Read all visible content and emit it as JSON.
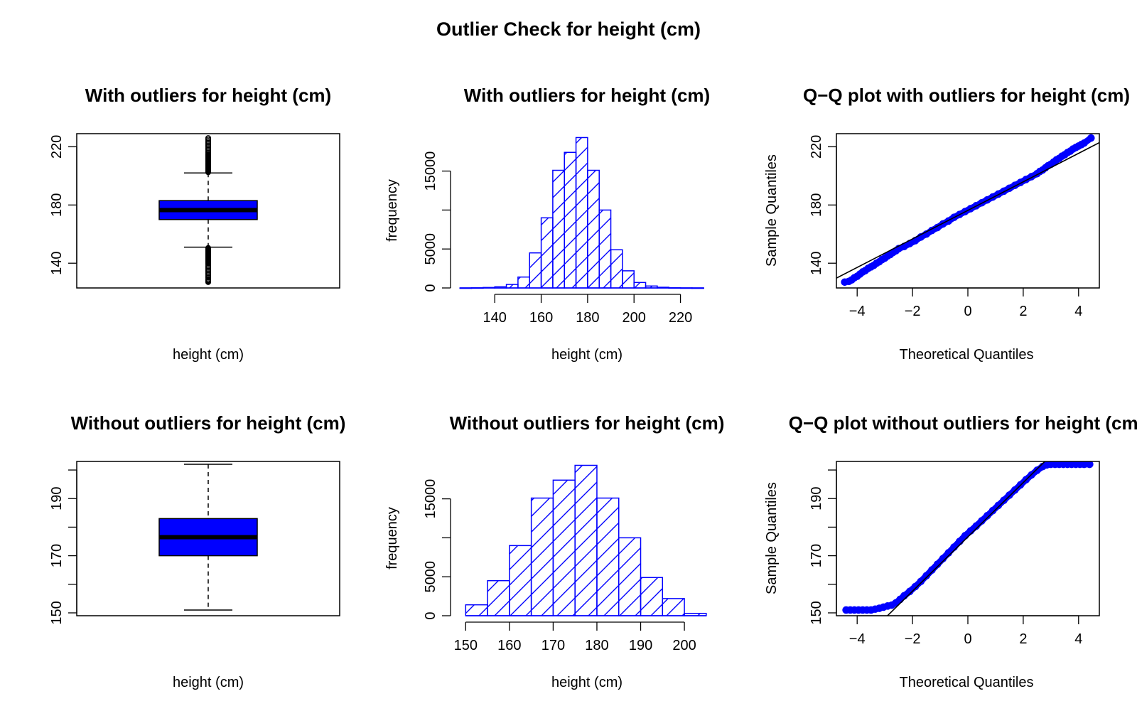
{
  "figure_title": "Outlier Check for  height (cm)",
  "colors": {
    "fill": "#0000ff",
    "line": "#000000",
    "hatch": "#0000ff"
  },
  "chart_data": [
    {
      "type": "boxplot",
      "title": "With outliers for height (cm)",
      "xlabel": "height (cm)",
      "ylabel": "",
      "ylim": [
        123,
        229
      ],
      "yticks": [
        140,
        180,
        220
      ],
      "stats": {
        "lower_whisker": 151,
        "q1": 170,
        "median": 176.5,
        "q3": 183,
        "upper_whisker": 202
      },
      "outliers_low": [
        150.5,
        150,
        149.5,
        149,
        148.5,
        148,
        147.5,
        147,
        146.5,
        146,
        145.5,
        145,
        144.5,
        144,
        143.5,
        143,
        142.5,
        142,
        141.5,
        141,
        140.5,
        140,
        139,
        138,
        137,
        136,
        135,
        134,
        133,
        132,
        131,
        130,
        129,
        128.5,
        128,
        127.5,
        127
      ],
      "outliers_high": [
        202.5,
        203,
        203.5,
        204,
        204.5,
        205,
        205.5,
        206,
        206.5,
        207,
        207.5,
        208,
        208.5,
        209,
        209.5,
        210,
        210.5,
        211,
        211.5,
        212,
        212.5,
        213,
        213.5,
        214,
        214.5,
        215,
        216,
        217,
        218,
        219,
        220,
        221,
        222,
        223,
        224,
        225,
        226
      ]
    },
    {
      "type": "histogram",
      "title": "With outliers for height (cm)",
      "xlabel": "height (cm)",
      "ylabel": "frequency",
      "xlim": [
        123.7,
        233
      ],
      "ylim": [
        0,
        19800
      ],
      "xticks": [
        140,
        160,
        180,
        200,
        220
      ],
      "yticks": [
        0,
        5000,
        10000,
        15000
      ],
      "ytick_labels": [
        "0",
        "5000",
        "",
        "15000"
      ],
      "bins": [
        {
          "x0": 125,
          "x1": 130,
          "count": 5
        },
        {
          "x0": 130,
          "x1": 135,
          "count": 20
        },
        {
          "x0": 135,
          "x1": 140,
          "count": 60
        },
        {
          "x0": 140,
          "x1": 145,
          "count": 150
        },
        {
          "x0": 145,
          "x1": 150,
          "count": 450
        },
        {
          "x0": 150,
          "x1": 155,
          "count": 1400
        },
        {
          "x0": 155,
          "x1": 160,
          "count": 4500
        },
        {
          "x0": 160,
          "x1": 165,
          "count": 9000
        },
        {
          "x0": 165,
          "x1": 170,
          "count": 15100
        },
        {
          "x0": 170,
          "x1": 175,
          "count": 17400
        },
        {
          "x0": 175,
          "x1": 180,
          "count": 19300
        },
        {
          "x0": 180,
          "x1": 185,
          "count": 15100
        },
        {
          "x0": 185,
          "x1": 190,
          "count": 10000
        },
        {
          "x0": 190,
          "x1": 195,
          "count": 4900
        },
        {
          "x0": 195,
          "x1": 200,
          "count": 2200
        },
        {
          "x0": 200,
          "x1": 205,
          "count": 700
        },
        {
          "x0": 205,
          "x1": 210,
          "count": 250
        },
        {
          "x0": 210,
          "x1": 215,
          "count": 90
        },
        {
          "x0": 215,
          "x1": 220,
          "count": 30
        },
        {
          "x0": 220,
          "x1": 225,
          "count": 10
        },
        {
          "x0": 225,
          "x1": 230,
          "count": 3
        }
      ]
    },
    {
      "type": "qq",
      "title": "Q−Q plot with outliers for height (cm)",
      "xlabel": "Theoretical Quantiles",
      "ylabel": "Sample Quantiles",
      "xlim": [
        -4.75,
        4.75
      ],
      "ylim": [
        123,
        229
      ],
      "xticks": [
        -4,
        -2,
        0,
        2,
        4
      ],
      "xtick_labels": [
        "−4",
        "−2",
        "0",
        "2",
        "4"
      ],
      "yticks": [
        140,
        180,
        220
      ],
      "reference_line": {
        "intercept": 176.3,
        "slope": 9.8
      },
      "points": [
        [
          -4.45,
          127
        ],
        [
          -4.3,
          127.5
        ],
        [
          -4.2,
          128.5
        ],
        [
          -4.1,
          130
        ],
        [
          -4.0,
          131
        ],
        [
          -3.9,
          132.5
        ],
        [
          -3.8,
          134
        ],
        [
          -3.7,
          135
        ],
        [
          -3.6,
          136.5
        ],
        [
          -3.5,
          137.5
        ],
        [
          -3.4,
          138.5
        ],
        [
          -3.3,
          140
        ],
        [
          -3.2,
          141
        ],
        [
          -3.1,
          142.5
        ],
        [
          -3.0,
          143.5
        ],
        [
          -2.9,
          145
        ],
        [
          -2.8,
          146
        ],
        [
          -2.7,
          147.5
        ],
        [
          -2.6,
          148.5
        ],
        [
          -2.5,
          150
        ],
        [
          -2.3,
          151.5
        ],
        [
          -2.1,
          153.5
        ],
        [
          -1.9,
          155.5
        ],
        [
          -1.7,
          158
        ],
        [
          -1.5,
          160
        ],
        [
          -1.3,
          162.5
        ],
        [
          -1.1,
          164.5
        ],
        [
          -0.9,
          167
        ],
        [
          -0.7,
          169
        ],
        [
          -0.5,
          171.5
        ],
        [
          -0.3,
          173.5
        ],
        [
          -0.1,
          175.5
        ],
        [
          0.1,
          177.5
        ],
        [
          0.3,
          179.5
        ],
        [
          0.5,
          181.5
        ],
        [
          0.7,
          183.5
        ],
        [
          0.9,
          185.5
        ],
        [
          1.1,
          187.5
        ],
        [
          1.3,
          189.5
        ],
        [
          1.5,
          191.5
        ],
        [
          1.7,
          193.5
        ],
        [
          1.9,
          195.5
        ],
        [
          2.1,
          197.5
        ],
        [
          2.3,
          199.5
        ],
        [
          2.5,
          201.5
        ],
        [
          2.6,
          203
        ],
        [
          2.7,
          204
        ],
        [
          2.8,
          205.5
        ],
        [
          2.9,
          207
        ],
        [
          3.0,
          208
        ],
        [
          3.1,
          209.5
        ],
        [
          3.2,
          211
        ],
        [
          3.3,
          212
        ],
        [
          3.4,
          213.5
        ],
        [
          3.5,
          214.5
        ],
        [
          3.6,
          216
        ],
        [
          3.7,
          217
        ],
        [
          3.8,
          218.5
        ],
        [
          3.9,
          219.5
        ],
        [
          4.0,
          220.5
        ],
        [
          4.1,
          221.5
        ],
        [
          4.2,
          222.5
        ],
        [
          4.45,
          226
        ]
      ]
    },
    {
      "type": "boxplot",
      "title": "Without outliers for height (cm)",
      "xlabel": "height (cm)",
      "ylabel": "",
      "ylim": [
        149,
        203
      ],
      "yticks": [
        150,
        160,
        170,
        180,
        190,
        200
      ],
      "ytick_labels": [
        "150",
        "",
        "170",
        "",
        "190",
        ""
      ],
      "stats": {
        "lower_whisker": 151,
        "q1": 170,
        "median": 176.5,
        "q3": 183,
        "upper_whisker": 202
      },
      "outliers_low": [],
      "outliers_high": []
    },
    {
      "type": "histogram",
      "title": "Without outliers for height (cm)",
      "xlabel": "height (cm)",
      "ylabel": "frequency",
      "xlim": [
        148,
        206
      ],
      "ylim": [
        0,
        19800
      ],
      "xticks": [
        150,
        160,
        170,
        180,
        190,
        200
      ],
      "yticks": [
        0,
        5000,
        10000,
        15000
      ],
      "ytick_labels": [
        "0",
        "5000",
        "",
        "15000"
      ],
      "bins": [
        {
          "x0": 150,
          "x1": 155,
          "count": 1400
        },
        {
          "x0": 155,
          "x1": 160,
          "count": 4500
        },
        {
          "x0": 160,
          "x1": 165,
          "count": 9000
        },
        {
          "x0": 165,
          "x1": 170,
          "count": 15100
        },
        {
          "x0": 170,
          "x1": 175,
          "count": 17400
        },
        {
          "x0": 175,
          "x1": 180,
          "count": 19300
        },
        {
          "x0": 180,
          "x1": 185,
          "count": 15100
        },
        {
          "x0": 185,
          "x1": 190,
          "count": 10000
        },
        {
          "x0": 190,
          "x1": 195,
          "count": 4900
        },
        {
          "x0": 195,
          "x1": 200,
          "count": 2200
        },
        {
          "x0": 200,
          "x1": 205,
          "count": 300
        }
      ]
    },
    {
      "type": "qq",
      "title": "Q−Q plot without outliers for height (cm)",
      "xlabel": "Theoretical Quantiles",
      "ylabel": "Sample Quantiles",
      "xlim": [
        -4.75,
        4.75
      ],
      "ylim": [
        149,
        203
      ],
      "xticks": [
        -4,
        -2,
        0,
        2,
        4
      ],
      "xtick_labels": [
        "−4",
        "−2",
        "0",
        "2",
        "4"
      ],
      "yticks": [
        150,
        160,
        170,
        180,
        190,
        200
      ],
      "ytick_labels": [
        "150",
        "",
        "170",
        "",
        "190",
        ""
      ],
      "reference_line": {
        "intercept": 176.6,
        "slope": 9.5
      },
      "points": [
        [
          -4.4,
          151
        ],
        [
          -4.25,
          151
        ],
        [
          -4.1,
          151
        ],
        [
          -3.95,
          151
        ],
        [
          -3.8,
          151
        ],
        [
          -3.65,
          151
        ],
        [
          -3.5,
          151
        ],
        [
          -3.35,
          151.3
        ],
        [
          -3.2,
          151.6
        ],
        [
          -3.05,
          152
        ],
        [
          -2.9,
          152.4
        ],
        [
          -2.75,
          152.7
        ],
        [
          -2.6,
          153.5
        ],
        [
          -2.45,
          154.7
        ],
        [
          -2.3,
          156
        ],
        [
          -2.1,
          157.5
        ],
        [
          -1.9,
          159.2
        ],
        [
          -1.7,
          161
        ],
        [
          -1.5,
          163
        ],
        [
          -1.3,
          165
        ],
        [
          -1.1,
          167
        ],
        [
          -0.9,
          169
        ],
        [
          -0.7,
          171
        ],
        [
          -0.5,
          173
        ],
        [
          -0.3,
          175
        ],
        [
          -0.1,
          177
        ],
        [
          0.1,
          178.7
        ],
        [
          0.3,
          180.4
        ],
        [
          0.5,
          182.2
        ],
        [
          0.7,
          184
        ],
        [
          0.9,
          185.8
        ],
        [
          1.1,
          187.6
        ],
        [
          1.3,
          189.4
        ],
        [
          1.5,
          191.2
        ],
        [
          1.7,
          193
        ],
        [
          1.9,
          194.8
        ],
        [
          2.1,
          196.6
        ],
        [
          2.3,
          198.3
        ],
        [
          2.5,
          199.9
        ],
        [
          2.7,
          201.2
        ],
        [
          2.85,
          201.8
        ],
        [
          3.0,
          202
        ],
        [
          3.15,
          202
        ],
        [
          3.3,
          202
        ],
        [
          3.45,
          202
        ],
        [
          3.6,
          202
        ],
        [
          3.75,
          202
        ],
        [
          3.9,
          202
        ],
        [
          4.05,
          202
        ],
        [
          4.2,
          202
        ],
        [
          4.4,
          202
        ]
      ]
    }
  ]
}
